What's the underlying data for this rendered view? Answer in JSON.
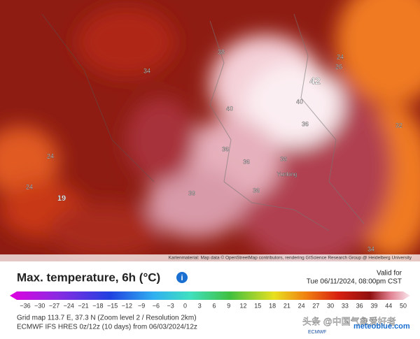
{
  "map": {
    "labels": [
      "42",
      "40",
      "40",
      "36",
      "36",
      "36",
      "36",
      "39",
      "38",
      "34",
      "34",
      "24",
      "24",
      "26",
      "19",
      "24",
      "36",
      "32",
      "Yunlong"
    ],
    "attribution": "Kartenmaterial: Map data © OpenStreetMap contributors, rendering GIScience Research Group @ Heidelberg University"
  },
  "header": {
    "title": "Max. temperature, 6h (°C)",
    "valid_label": "Valid for",
    "valid_time": "Tue 06/11/2024, 08:00pm CST"
  },
  "colorbar": {
    "ticks": [
      "−36",
      "−30",
      "−27",
      "−24",
      "−21",
      "−18",
      "−15",
      "−12",
      "−9",
      "−6",
      "−3",
      "0",
      "3",
      "6",
      "9",
      "12",
      "15",
      "18",
      "21",
      "24",
      "27",
      "30",
      "33",
      "36",
      "39",
      "44",
      "50"
    ]
  },
  "footer": {
    "grid": "Grid map 113.7 E, 37.3 N (Zoom level 2 / Resolution 2km)",
    "model": "ECMWF IFS HRES 0z/12z (10 days) from 06/03/2024/12z",
    "watermark": "头条 @中国气象爱好者",
    "brand": "meteoblue.com",
    "ecmwf": "ECMWF"
  }
}
